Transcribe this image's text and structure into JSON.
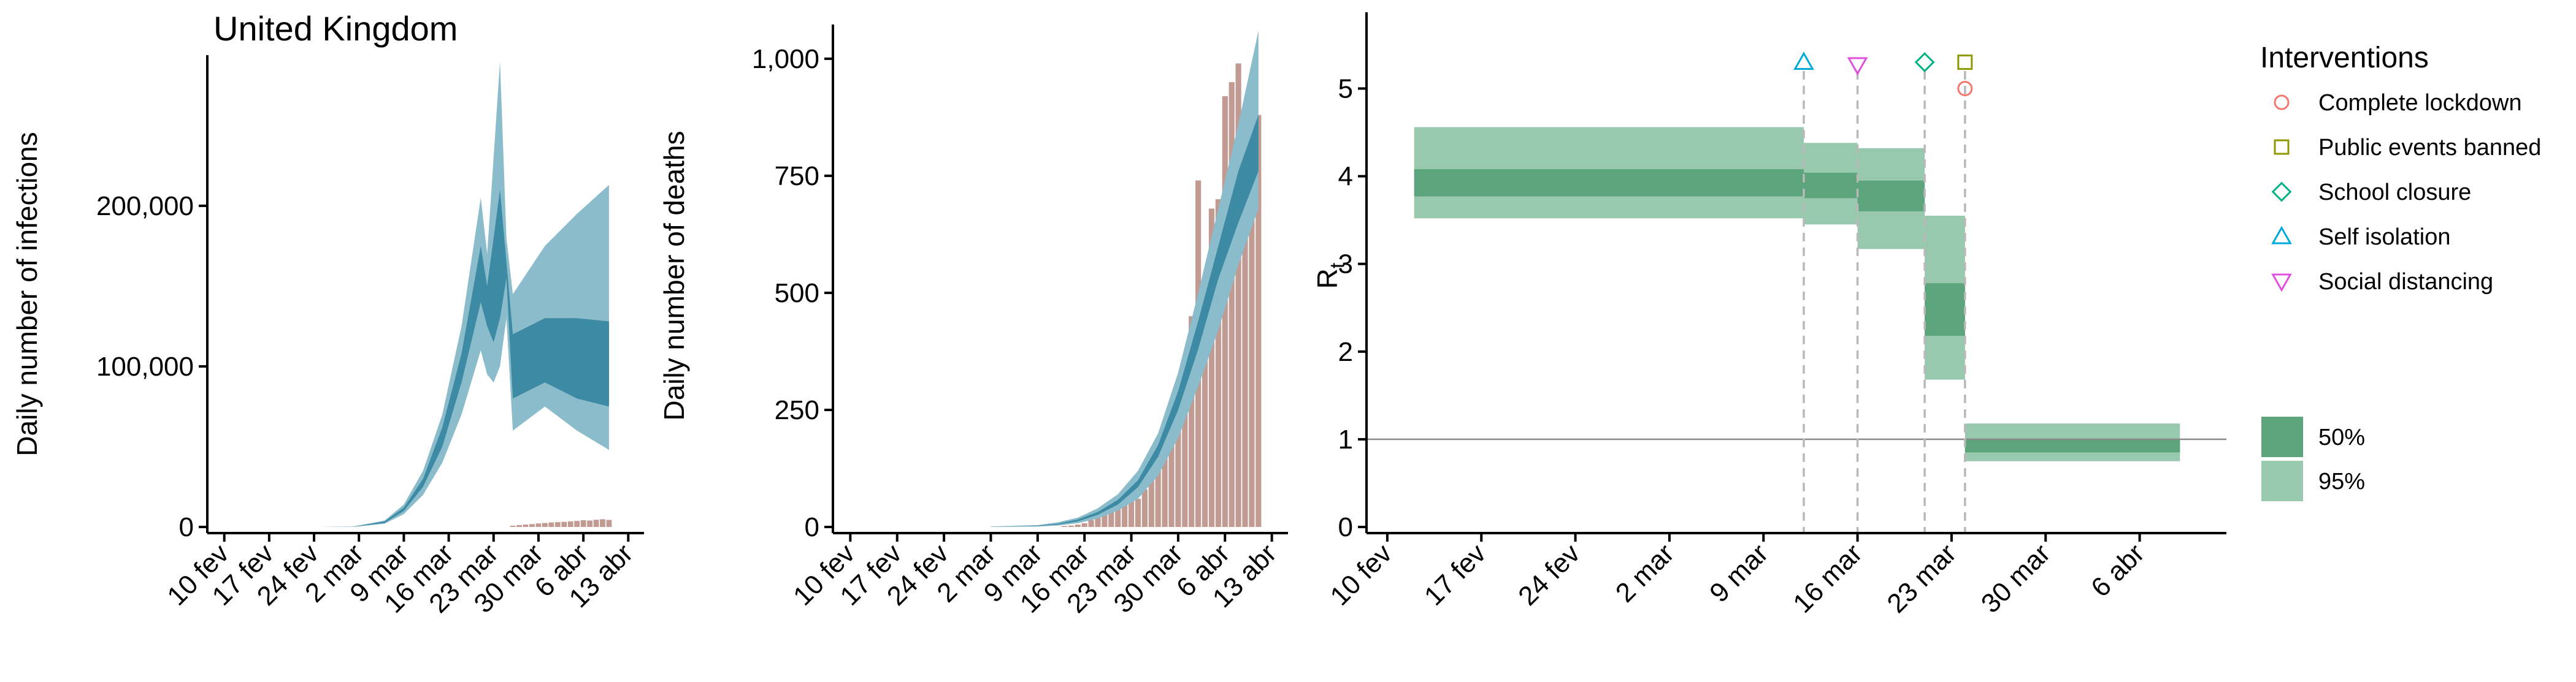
{
  "chart_data": [
    {
      "type": "area",
      "title": "United Kingdom",
      "ylabel": "Daily number of infections",
      "xlabel": "",
      "x_tick_labels": [
        "10 fev",
        "17 fev",
        "24 fev",
        "2 mar",
        "9 mar",
        "16 mar",
        "23 mar",
        "30 mar",
        "6 abr",
        "13 abr"
      ],
      "x_tick_days": [
        0,
        7,
        14,
        21,
        28,
        35,
        42,
        49,
        56,
        63
      ],
      "y_ticks": [
        0,
        100000,
        200000
      ],
      "y_tick_labels": [
        "0",
        "100,000",
        "200,000"
      ],
      "ylim": [
        0,
        290000
      ],
      "xlim": [
        -1.5,
        64.5
      ],
      "series": [
        {
          "kind": "band95",
          "color": "#8bbccb",
          "x": [
            0,
            10,
            15,
            20,
            25,
            28,
            31,
            34,
            37,
            40,
            41,
            42,
            43,
            44,
            45,
            50,
            55,
            60
          ],
          "lower": [
            0,
            0,
            0,
            0,
            2000,
            8000,
            20000,
            40000,
            70000,
            110000,
            95000,
            90000,
            100000,
            130000,
            60000,
            75000,
            60000,
            48000
          ],
          "upper": [
            0,
            0,
            0,
            200,
            4000,
            14000,
            35000,
            70000,
            125000,
            205000,
            170000,
            230000,
            290000,
            180000,
            145000,
            175000,
            195000,
            213000
          ]
        },
        {
          "kind": "band50",
          "color": "#3d8aa4",
          "x": [
            0,
            10,
            15,
            20,
            25,
            28,
            31,
            34,
            37,
            40,
            41,
            42,
            43,
            44,
            45,
            50,
            55,
            60
          ],
          "lower": [
            0,
            0,
            0,
            0,
            2500,
            10000,
            25000,
            50000,
            90000,
            140000,
            125000,
            115000,
            130000,
            155000,
            80000,
            90000,
            80000,
            75000
          ],
          "upper": [
            0,
            0,
            0,
            100,
            3500,
            12000,
            30000,
            62000,
            108000,
            175000,
            150000,
            180000,
            210000,
            165000,
            120000,
            130000,
            130000,
            128000
          ]
        },
        {
          "kind": "bars",
          "color": "#c19a92",
          "x": [
            45,
            46,
            47,
            48,
            49,
            50,
            51,
            52,
            53,
            54,
            55,
            56,
            57,
            58,
            59,
            60
          ],
          "values": [
            800,
            1200,
            1500,
            1800,
            2200,
            2500,
            2800,
            3000,
            3200,
            3500,
            3800,
            4200,
            4000,
            4500,
            4800,
            4400
          ]
        }
      ]
    },
    {
      "type": "bar",
      "title": "",
      "ylabel": "Daily number of deaths",
      "xlabel": "",
      "x_tick_labels": [
        "10 fev",
        "17 fev",
        "24 fev",
        "2 mar",
        "9 mar",
        "16 mar",
        "23 mar",
        "30 mar",
        "6 abr",
        "13 abr"
      ],
      "x_tick_days": [
        0,
        7,
        14,
        21,
        28,
        35,
        42,
        49,
        56,
        63
      ],
      "y_ticks": [
        0,
        250,
        500,
        750,
        1000
      ],
      "y_tick_labels": [
        "0",
        "250",
        "500",
        "750",
        "1,000"
      ],
      "ylim": [
        0,
        1060
      ],
      "xlim": [
        -1.5,
        64.5
      ],
      "series": [
        {
          "kind": "bars",
          "name": "",
          "color": "#c19a92",
          "x": [
            32,
            33,
            34,
            35,
            36,
            37,
            38,
            39,
            40,
            41,
            42,
            43,
            44,
            45,
            46,
            47,
            48,
            49,
            50,
            51,
            52,
            53,
            54,
            55,
            56,
            57,
            58,
            59,
            60,
            61
          ],
          "values": [
            2,
            3,
            5,
            8,
            15,
            30,
            45,
            40,
            40,
            50,
            55,
            60,
            80,
            110,
            150,
            170,
            260,
            270,
            350,
            450,
            740,
            380,
            680,
            700,
            920,
            950,
            990,
            810,
            930,
            880
          ]
        },
        {
          "kind": "band95",
          "color": "#8bbccb",
          "x": [
            21,
            28,
            31,
            34,
            37,
            40,
            43,
            46,
            49,
            52,
            55,
            58,
            61
          ],
          "lower": [
            0,
            1,
            3,
            8,
            18,
            35,
            60,
            110,
            190,
            300,
            420,
            560,
            680
          ],
          "upper": [
            1,
            4,
            10,
            20,
            40,
            70,
            120,
            200,
            330,
            500,
            680,
            860,
            1060
          ]
        },
        {
          "kind": "band50",
          "color": "#3d8aa4",
          "x": [
            21,
            28,
            31,
            34,
            37,
            40,
            43,
            46,
            49,
            52,
            55,
            58,
            61
          ],
          "lower": [
            0,
            2,
            5,
            12,
            26,
            48,
            85,
            150,
            250,
            380,
            530,
            650,
            760
          ],
          "upper": [
            0,
            3,
            7,
            16,
            32,
            58,
            100,
            175,
            290,
            440,
            600,
            760,
            880
          ]
        }
      ]
    },
    {
      "type": "area",
      "title": "",
      "ylabel": "Rt",
      "ylabel_main": "R",
      "ylabel_sub": "t",
      "xlabel": "",
      "x_tick_labels": [
        "10 fev",
        "17 fev",
        "24 fev",
        "2 mar",
        "9 mar",
        "16 mar",
        "23 mar",
        "30 mar",
        "6 abr"
      ],
      "x_tick_days": [
        0,
        7,
        14,
        21,
        28,
        35,
        42,
        49,
        56
      ],
      "y_ticks": [
        0,
        1,
        2,
        3,
        4,
        5
      ],
      "y_tick_labels": [
        "0",
        "1",
        "2",
        "3",
        "4",
        "5"
      ],
      "ylim": [
        0,
        5.8
      ],
      "xlim": [
        -1,
        62
      ],
      "reference_line": 1,
      "segments": [
        {
          "x0": 2,
          "x1": 31,
          "lo95": 3.52,
          "hi95": 4.56,
          "lo50": 3.77,
          "hi50": 4.08
        },
        {
          "x0": 31,
          "x1": 35,
          "lo95": 3.45,
          "hi95": 4.38,
          "lo50": 3.75,
          "hi50": 4.04
        },
        {
          "x0": 35,
          "x1": 40,
          "lo95": 3.17,
          "hi95": 4.32,
          "lo50": 3.6,
          "hi50": 3.95
        },
        {
          "x0": 40,
          "x1": 43,
          "lo95": 1.68,
          "hi95": 3.55,
          "lo50": 2.18,
          "hi50": 2.78
        },
        {
          "x0": 43,
          "x1": 59,
          "lo95": 0.75,
          "hi95": 1.18,
          "lo50": 0.85,
          "hi50": 1.0
        }
      ],
      "band50_color": "#5ba47c",
      "band95_color": "#98c9ae",
      "interventions": [
        {
          "name": "Self isolation",
          "day": 31,
          "symbol": "triangle-up",
          "color": "#00a9d9",
          "y": 5.3
        },
        {
          "name": "Social distancing",
          "day": 35,
          "symbol": "triangle-down",
          "color": "#e250e0",
          "y": 5.27
        },
        {
          "name": "School closure",
          "day": 40,
          "symbol": "diamond",
          "color": "#00b184",
          "y": 5.3
        },
        {
          "name": "Public events banned",
          "day": 43,
          "symbol": "square",
          "color": "#8f9a00",
          "y": 5.3
        },
        {
          "name": "Complete lockdown",
          "day": 43,
          "symbol": "circle",
          "color": "#f4766d",
          "y": 5.0
        }
      ],
      "legend": {
        "title": "Interventions",
        "placement": "right",
        "items": [
          {
            "label": "Complete lockdown",
            "symbol": "circle",
            "color": "#f4766d"
          },
          {
            "label": "Public events banned",
            "symbol": "square",
            "color": "#8f9a00"
          },
          {
            "label": "School closure",
            "symbol": "diamond",
            "color": "#00b184"
          },
          {
            "label": "Self isolation",
            "symbol": "triangle-up",
            "color": "#00a9d9"
          },
          {
            "label": "Social distancing",
            "symbol": "triangle-down",
            "color": "#e250e0"
          }
        ],
        "bands": [
          {
            "label": "50%",
            "color": "#5ba47c"
          },
          {
            "label": "95%",
            "color": "#98c9ae"
          }
        ]
      }
    }
  ]
}
